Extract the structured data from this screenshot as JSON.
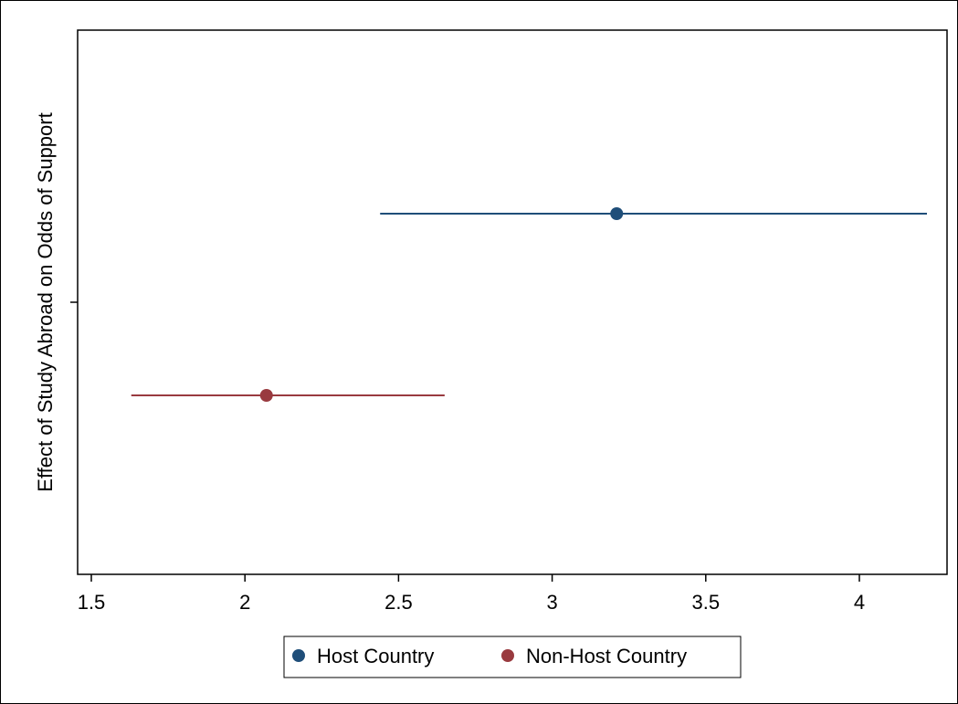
{
  "chart_data": {
    "type": "scatter",
    "subtype": "coefficient-plot",
    "title": "",
    "xlabel": "",
    "ylabel": "Effect of Study Abroad on Odds of Support",
    "xlim": [
      1.5,
      4.25
    ],
    "xticks": [
      1.5,
      2,
      2.5,
      3,
      3.5,
      4
    ],
    "xtick_labels": [
      "1.5",
      "2",
      "2.5",
      "3",
      "3.5",
      "4"
    ],
    "grid": false,
    "legend_position": "bottom",
    "series": [
      {
        "name": "Host Country",
        "estimate": 3.21,
        "ci_low": 2.44,
        "ci_high": 4.22,
        "color": "#1f4e79"
      },
      {
        "name": "Non-Host Country",
        "estimate": 2.07,
        "ci_low": 1.63,
        "ci_high": 2.65,
        "color": "#993a3f"
      }
    ]
  }
}
